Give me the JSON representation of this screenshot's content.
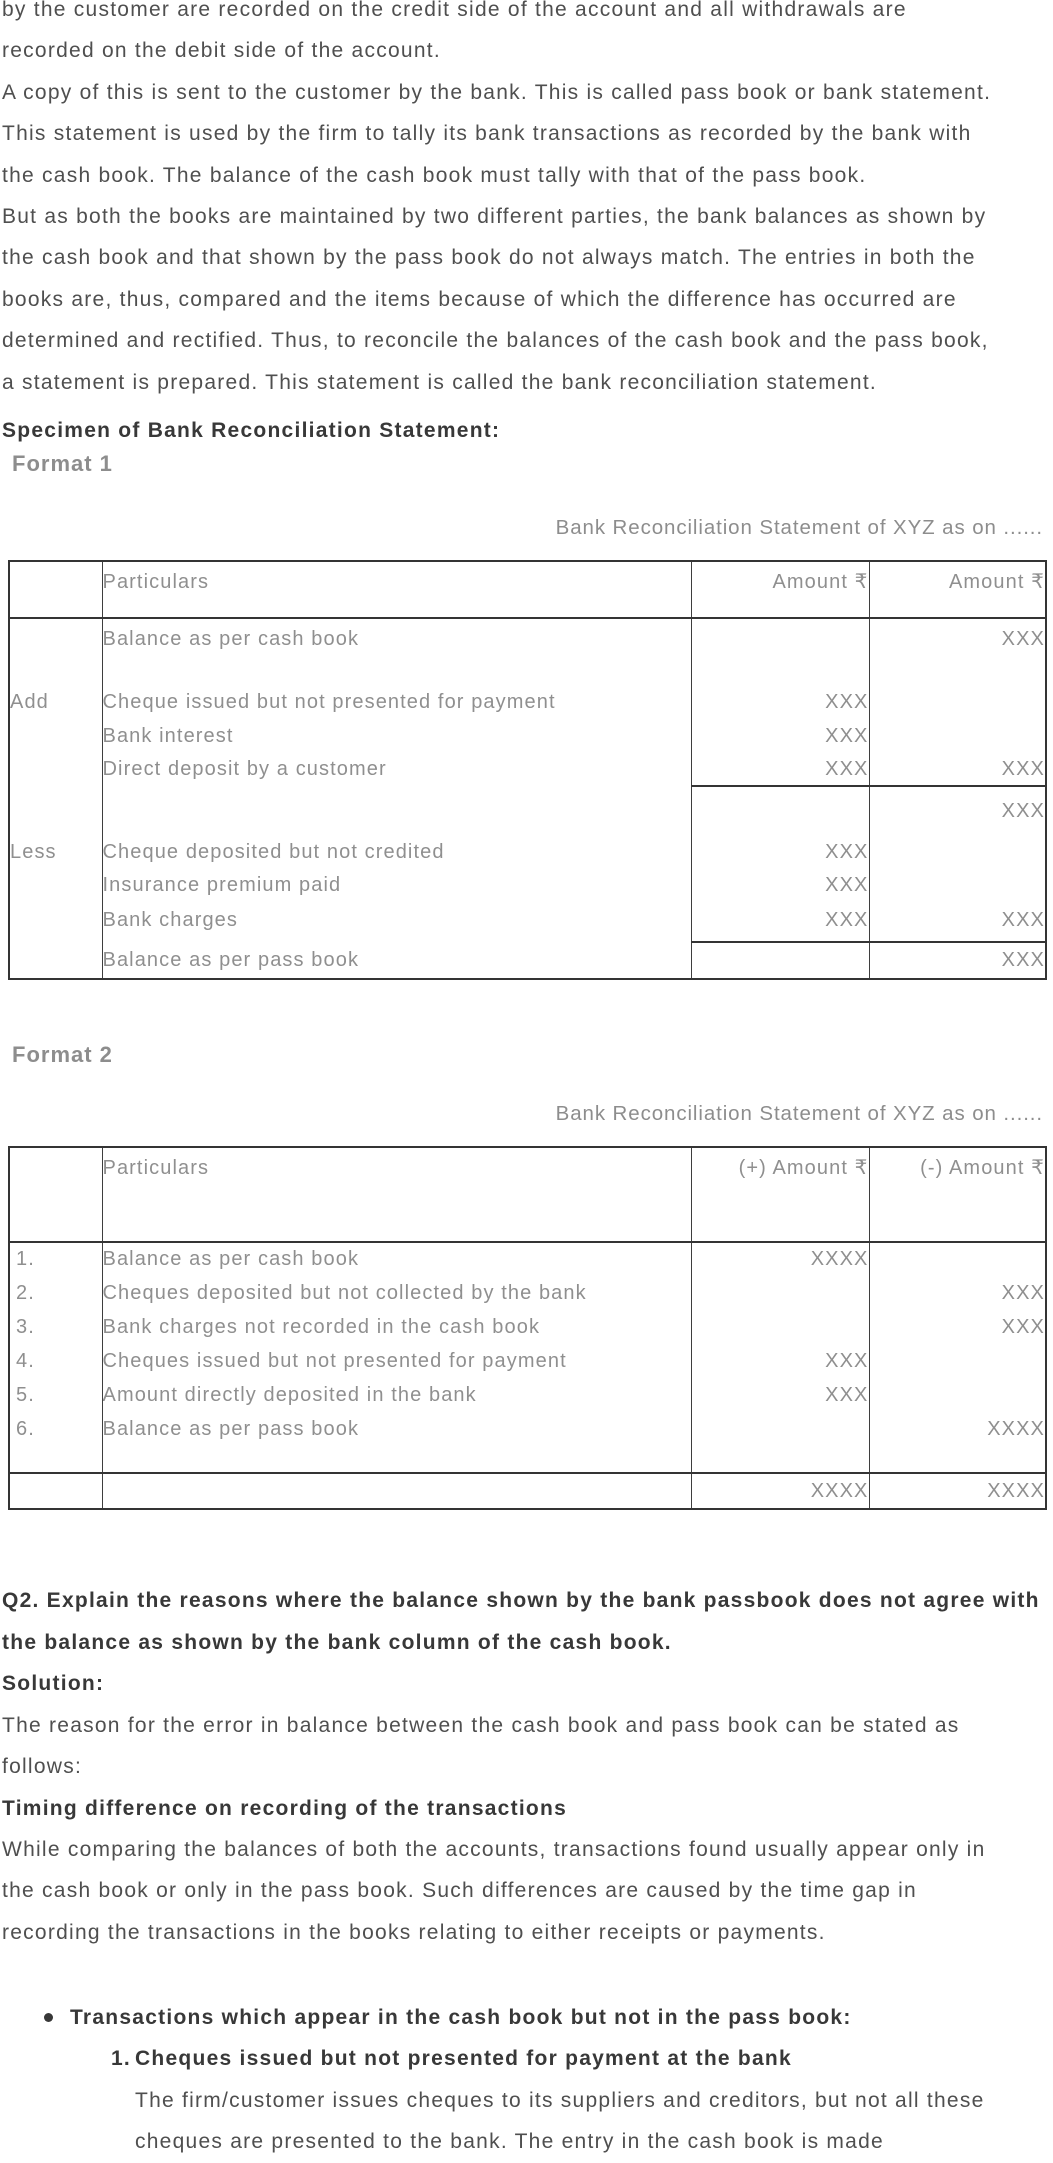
{
  "document": {
    "intro_paragraphs": [
      {
        "lines": [
          "by the customer are recorded on the credit side of the account and all withdrawals are",
          "recorded on the debit side of the account."
        ]
      },
      {
        "lines": [
          "A copy of this is sent to the customer by the bank. This is called pass book or bank statement.",
          "This statement is used by the firm to tally its bank transactions as recorded by the bank with",
          "the cash book. The balance of the cash book must tally with that of the pass book."
        ]
      },
      {
        "lines": [
          "But as both the books are maintained by two different parties, the bank balances as shown by",
          "the cash book and that shown by the pass book do not always match. The entries in both the",
          "books are, thus, compared and the items because of which the difference has occurred are",
          "determined and rectified. Thus, to reconcile the balances of the cash book and the pass book,",
          "a statement is prepared. This statement is called the bank reconciliation statement."
        ]
      }
    ],
    "specimen_heading": "Specimen of Bank Reconciliation Statement:",
    "format1": {
      "label": "Format 1",
      "table_title": "Bank Reconciliation Statement of XYZ as on ......",
      "table": {
        "headers": {
          "particulars": "Particulars",
          "amount1": "Amount ₹",
          "amount2": "Amount ₹"
        },
        "rows": [
          {
            "label": "",
            "particulars": "Balance as per cash book",
            "amount1": "",
            "amount2": "XXX"
          },
          {
            "label": "Add",
            "particulars": "Cheque issued but not presented for payment",
            "amount1": "XXX",
            "amount2": ""
          },
          {
            "label": "",
            "particulars": "Bank interest",
            "amount1": "XXX",
            "amount2": ""
          },
          {
            "label": "",
            "particulars": "Direct deposit by a customer",
            "amount1": "XXX",
            "amount2": "XXX"
          },
          {
            "label": "",
            "particulars": "",
            "amount1": "",
            "amount2": "XXX"
          },
          {
            "label": "Less",
            "particulars": "Cheque deposited but not credited",
            "amount1": "XXX",
            "amount2": ""
          },
          {
            "label": "",
            "particulars": "Insurance premium paid",
            "amount1": "XXX",
            "amount2": ""
          },
          {
            "label": "",
            "particulars": "Bank charges",
            "amount1": "XXX",
            "amount2": "XXX"
          },
          {
            "label": "",
            "particulars": "Balance as per pass book",
            "amount1": "",
            "amount2": "XXX"
          }
        ]
      }
    },
    "format2": {
      "label": "Format 2",
      "table_title": "Bank Reconciliation Statement of XYZ as on ......",
      "table": {
        "headers": {
          "particulars": "Particulars",
          "plus": "(+)\nAmount\n₹",
          "minus": "(-)\nAmount\n₹"
        },
        "rows": [
          {
            "sno": "1.",
            "particulars": "Balance as per cash book",
            "plus": "XXXX",
            "minus": ""
          },
          {
            "sno": "2.",
            "particulars": "Cheques deposited but not collected by the bank",
            "plus": "",
            "minus": "XXX"
          },
          {
            "sno": "3.",
            "particulars": "Bank charges not recorded in the cash book",
            "plus": "",
            "minus": "XXX"
          },
          {
            "sno": "4.",
            "particulars": "Cheques issued but not presented for payment",
            "plus": "XXX",
            "minus": ""
          },
          {
            "sno": "5.",
            "particulars": "Amount directly deposited in the bank",
            "plus": "XXX",
            "minus": ""
          },
          {
            "sno": "6.",
            "particulars": "Balance as per pass book",
            "plus": "",
            "minus": "XXXX"
          }
        ],
        "total_row": {
          "plus": "XXXX",
          "minus": "XXXX"
        }
      }
    },
    "q2_section": {
      "question_lines": [
        "Q2. Explain the reasons where the balance shown by the bank passbook does not agree with",
        "the balance as shown by the bank column of the cash book."
      ],
      "solution_label": "Solution:",
      "solution_intro_lines": [
        "The reason for the error in balance between the cash book and pass book can be stated as",
        "follows:"
      ],
      "timing_heading": "Timing difference on recording of the transactions",
      "timing_paragraph_lines": [
        "While comparing the balances of both the accounts, transactions found usually appear only in",
        "the cash book or only in the pass book. Such differences are caused by the time gap in",
        "recording the transactions in the books relating to either receipts or payments."
      ],
      "bullet_heading": "Transactions which appear in the cash book but not in the pass book:",
      "numbered_item": {
        "number": "1.",
        "title": "Cheques issued but not presented for payment at the bank",
        "body_lines": [
          "The firm/customer issues cheques to its suppliers and creditors, but not all these",
          "cheques are presented to the bank. The entry in the cash book is made"
        ]
      }
    }
  }
}
